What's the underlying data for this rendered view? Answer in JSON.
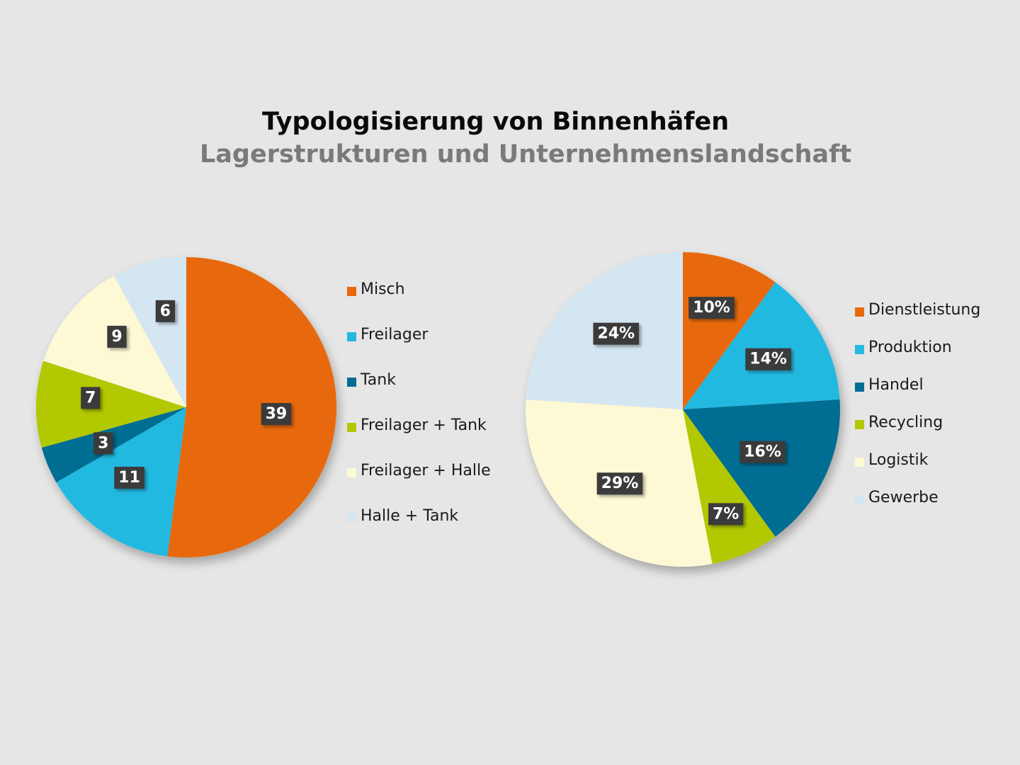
{
  "header": {
    "title": "Typologisierung von Binnenhäfen",
    "subtitle": "Lagerstrukturen und Unternehmenslandschaft"
  },
  "colors": {
    "orange": "#e8690c",
    "cyan": "#23b9e1",
    "dark_blue": "#006d92",
    "lime": "#b2c800",
    "cream": "#fdf9d5",
    "light_blue": "#d5e6f3",
    "label_bg": "#3a3a3a",
    "label_text": "#ffffff"
  },
  "chart_data": [
    {
      "type": "pie",
      "title": "Lagerstrukturen",
      "legend_position": "right",
      "series": [
        {
          "name": "Misch",
          "value": 39,
          "label": "39",
          "color": "#e8690c"
        },
        {
          "name": "Freilager",
          "value": 11,
          "label": "11",
          "color": "#23b9e1"
        },
        {
          "name": "Tank",
          "value": 3,
          "label": "3",
          "color": "#006d92"
        },
        {
          "name": "Freilager + Tank",
          "value": 7,
          "label": "7",
          "color": "#b2c800"
        },
        {
          "name": "Freilager + Halle",
          "value": 9,
          "label": "9",
          "color": "#fdf9d5"
        },
        {
          "name": "Halle + Tank",
          "value": 6,
          "label": "6",
          "color": "#d5e6f3"
        }
      ]
    },
    {
      "type": "pie",
      "title": "Unternehmenslandschaft",
      "legend_position": "right",
      "series": [
        {
          "name": "Dienstleistung",
          "value": 10,
          "label": "10%",
          "color": "#e8690c"
        },
        {
          "name": "Produktion",
          "value": 14,
          "label": "14%",
          "color": "#23b9e1"
        },
        {
          "name": "Handel",
          "value": 16,
          "label": "16%",
          "color": "#006d92"
        },
        {
          "name": "Recycling",
          "value": 7,
          "label": "7%",
          "color": "#b2c800"
        },
        {
          "name": "Logistik",
          "value": 29,
          "label": "29%",
          "color": "#fdf9d5"
        },
        {
          "name": "Gewerbe",
          "value": 24,
          "label": "24%",
          "color": "#d5e6f3"
        }
      ]
    }
  ]
}
